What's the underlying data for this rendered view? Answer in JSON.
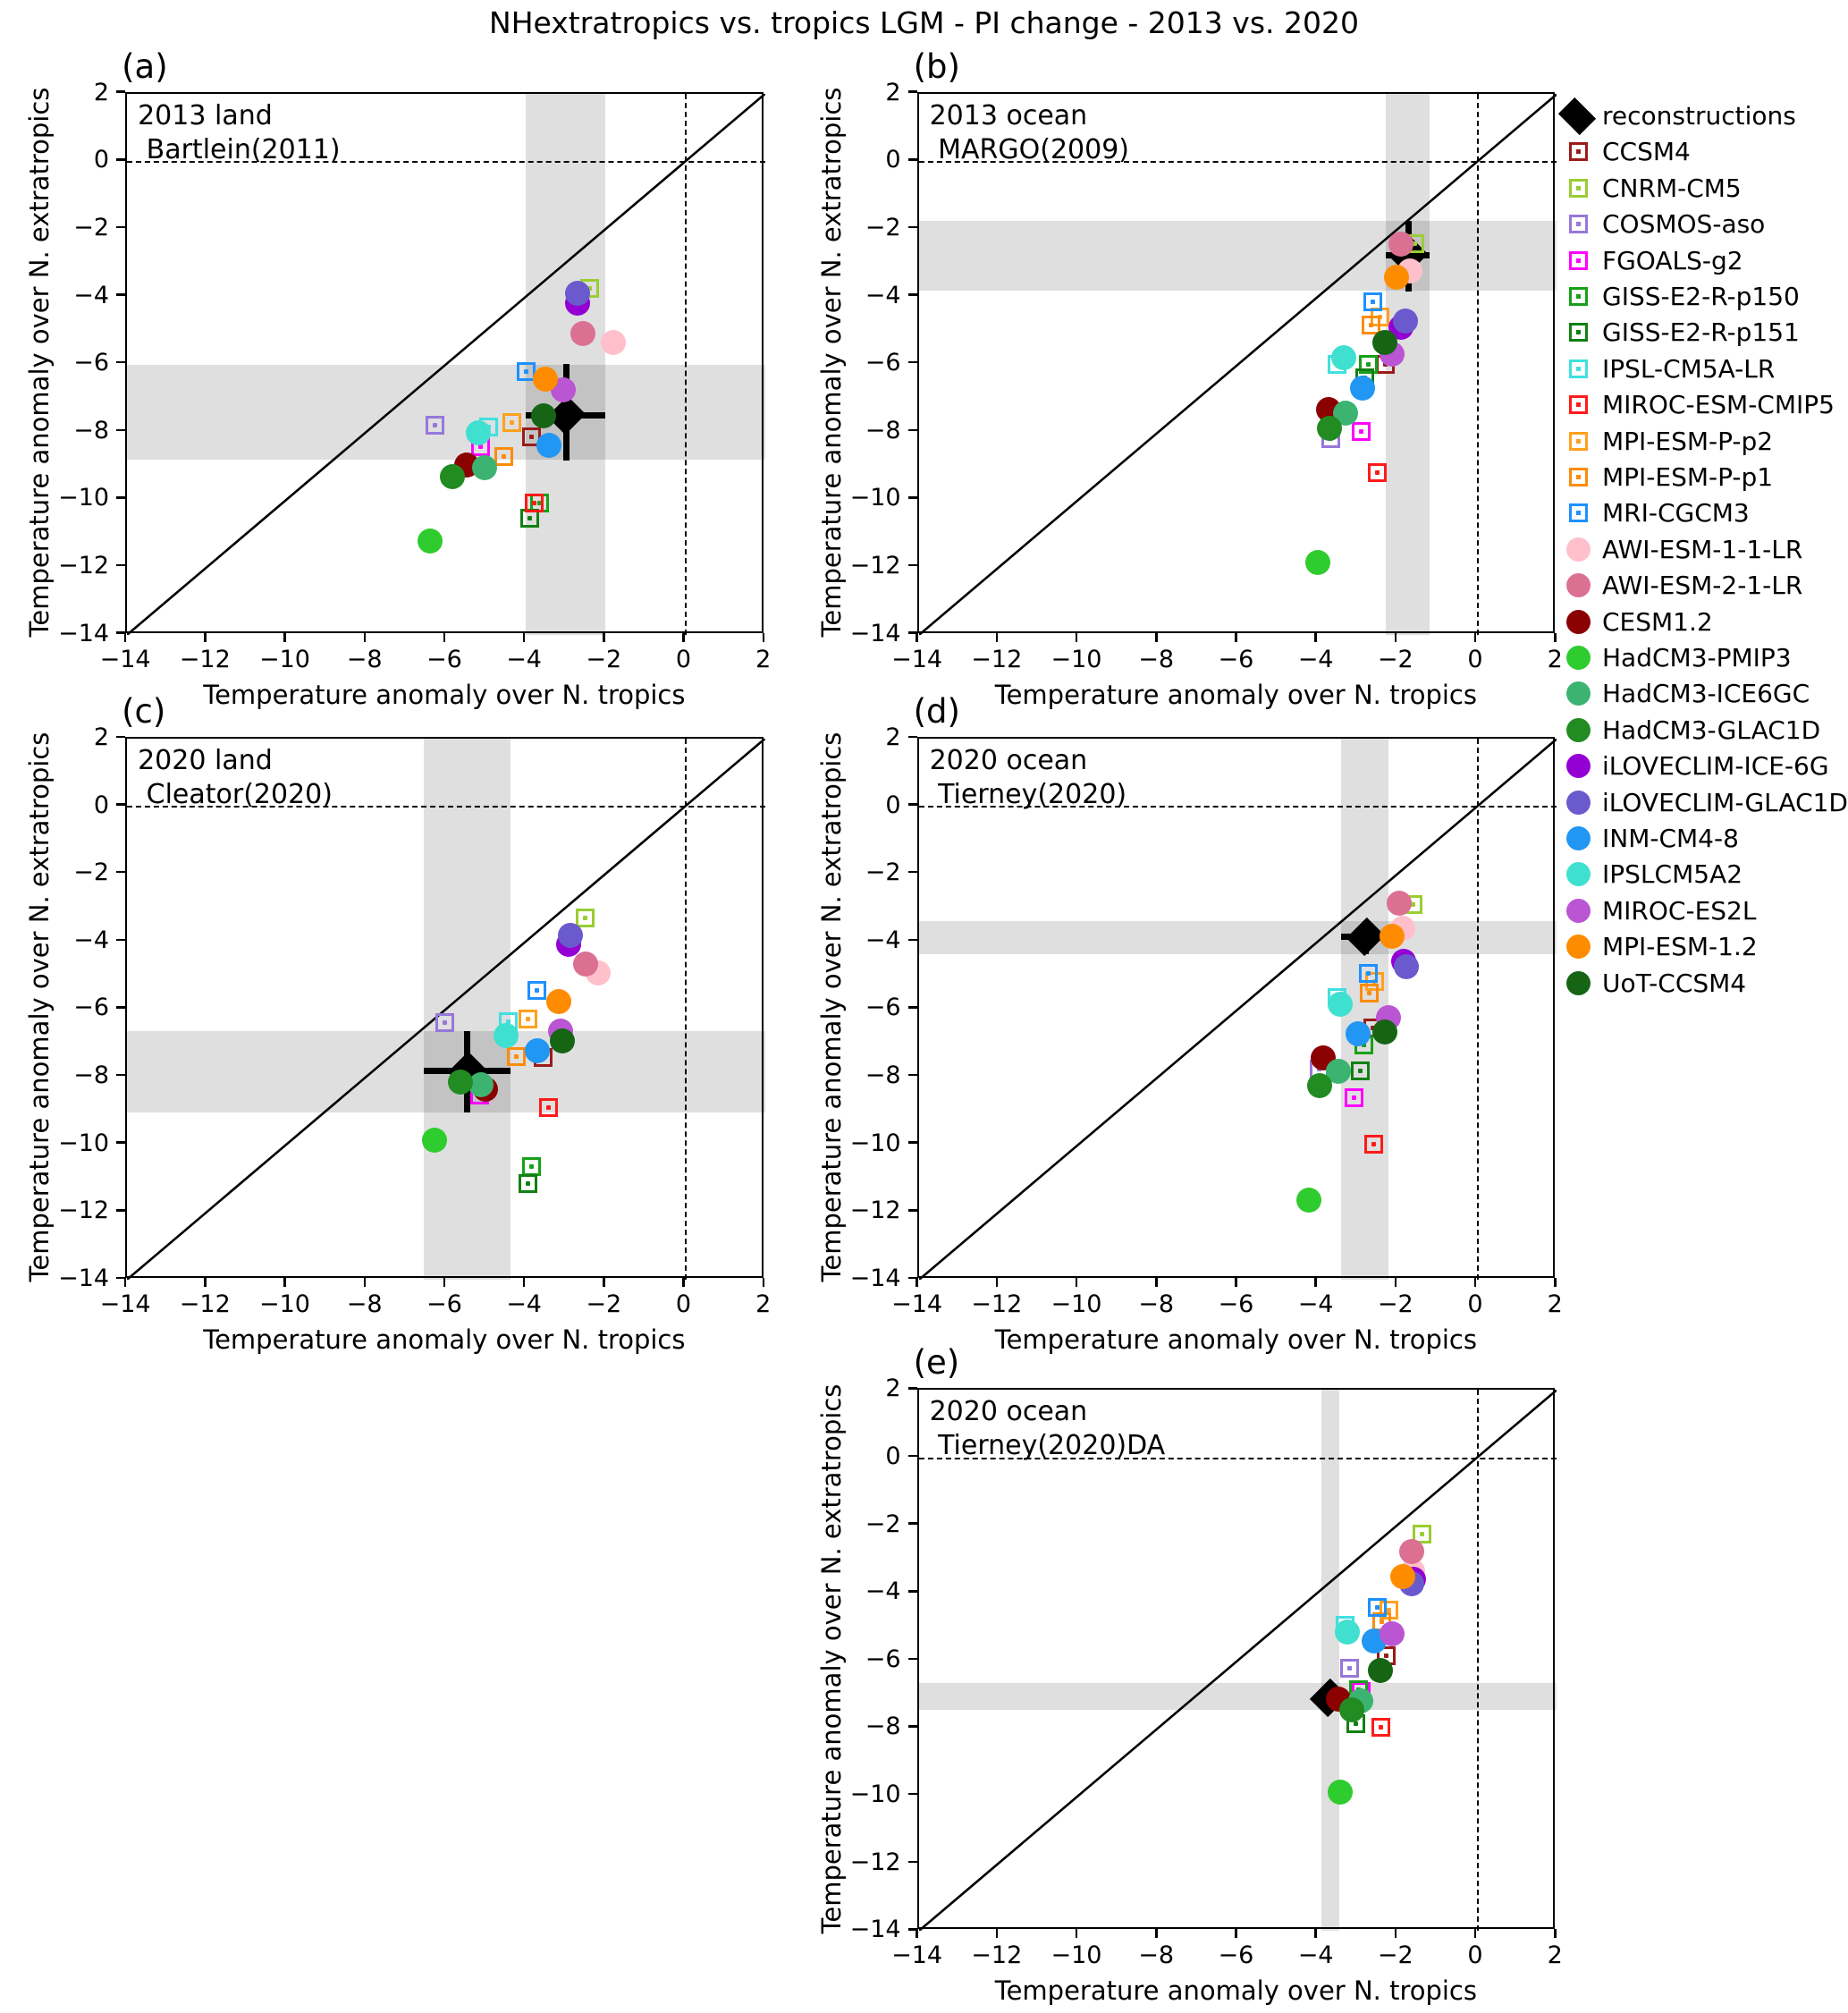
{
  "chart_data": {
    "type": "scatter",
    "title": "NHextratropics vs. tropics LGM - PI change - 2013 vs. 2020",
    "xlabel": "Temperature anomaly over N. tropics",
    "ylabel": "Temperature anomaly over N. extratropics",
    "xlim": [
      -14,
      2
    ],
    "ylim": [
      -14,
      2
    ],
    "xticks": [
      -14,
      -12,
      -10,
      -8,
      -6,
      -4,
      -2,
      0,
      2
    ],
    "yticks": [
      -14,
      -12,
      -10,
      -8,
      -6,
      -4,
      -2,
      0,
      2
    ],
    "grid": false,
    "legend_position": "right",
    "legend": [
      {
        "label": "reconstructions",
        "color": "#000000",
        "marker": "diamond"
      },
      {
        "label": "CCSM4",
        "color": "#9B1B1B",
        "marker": "square"
      },
      {
        "label": "CNRM-CM5",
        "color": "#9ACD32",
        "marker": "square"
      },
      {
        "label": "COSMOS-aso",
        "color": "#9678D9",
        "marker": "square"
      },
      {
        "label": "FGOALS-g2",
        "color": "#FF00FF",
        "marker": "square"
      },
      {
        "label": "GISS-E2-R-p150",
        "color": "#18A018",
        "marker": "square"
      },
      {
        "label": "GISS-E2-R-p151",
        "color": "#128012",
        "marker": "square"
      },
      {
        "label": "IPSL-CM5A-LR",
        "color": "#40E0E0",
        "marker": "square"
      },
      {
        "label": "MIROC-ESM-CMIP5",
        "color": "#FF1A1A",
        "marker": "square"
      },
      {
        "label": "MPI-ESM-P-p2",
        "color": "#FFA01E",
        "marker": "square"
      },
      {
        "label": "MPI-ESM-P-p1",
        "color": "#FB8C0C",
        "marker": "square"
      },
      {
        "label": "MRI-CGCM3",
        "color": "#1E90FF",
        "marker": "square"
      },
      {
        "label": "AWI-ESM-1-1-LR",
        "color": "#FFC0CB",
        "marker": "circle"
      },
      {
        "label": "AWI-ESM-2-1-LR",
        "color": "#DB7093",
        "marker": "circle"
      },
      {
        "label": "CESM1.2",
        "color": "#8B0000",
        "marker": "circle"
      },
      {
        "label": "HadCM3-PMIP3",
        "color": "#2ECC2E",
        "marker": "circle"
      },
      {
        "label": "HadCM3-ICE6GC",
        "color": "#3CB371",
        "marker": "circle"
      },
      {
        "label": "HadCM3-GLAC1D",
        "color": "#228B22",
        "marker": "circle"
      },
      {
        "label": "iLOVECLIM-ICE-6G",
        "color": "#9400D3",
        "marker": "circle"
      },
      {
        "label": "iLOVECLIM-GLAC1D",
        "color": "#6A5ACD",
        "marker": "circle"
      },
      {
        "label": "INM-CM4-8",
        "color": "#2196F3",
        "marker": "circle"
      },
      {
        "label": "IPSLCM5A2",
        "color": "#40E0D0",
        "marker": "circle"
      },
      {
        "label": "MIROC-ES2L",
        "color": "#BA55D3",
        "marker": "circle"
      },
      {
        "label": "MPI-ESM-1.2",
        "color": "#FF8C00",
        "marker": "circle"
      },
      {
        "label": "UoT-CCSM4",
        "color": "#156515",
        "marker": "circle"
      }
    ],
    "panels": [
      {
        "id": "a",
        "letter": "(a)",
        "caption_line1": "2013 land",
        "caption_line2": "Bartlein(2011)",
        "col": 1,
        "row": 1,
        "xband": [
          -4.0,
          -2.0
        ],
        "yband": [
          -8.83,
          -6.03
        ],
        "recon": {
          "x": -2.98,
          "y": -7.52,
          "xerr": [
            -4.0,
            -2.0
          ],
          "yerr": [
            -8.85,
            -6.0
          ]
        },
        "points": [
          {
            "model": "CCSM4",
            "x": -3.85,
            "y": -8.14
          },
          {
            "model": "CNRM-CM5",
            "x": -2.4,
            "y": -3.77
          },
          {
            "model": "COSMOS-aso",
            "x": -6.27,
            "y": -7.81
          },
          {
            "model": "FGOALS-g2",
            "x": -5.14,
            "y": -8.43
          },
          {
            "model": "GISS-E2-R-p150",
            "x": -3.65,
            "y": -10.1
          },
          {
            "model": "GISS-E2-R-p151",
            "x": -3.91,
            "y": -10.57
          },
          {
            "model": "IPSL-CM5A-LR",
            "x": -4.94,
            "y": -7.87
          },
          {
            "model": "MIROC-ESM-CMIP5",
            "x": -3.78,
            "y": -10.1
          },
          {
            "model": "MPI-ESM-P-p2",
            "x": -4.36,
            "y": -7.72
          },
          {
            "model": "MPI-ESM-P-p1",
            "x": -4.56,
            "y": -8.74
          },
          {
            "model": "MRI-CGCM3",
            "x": -3.98,
            "y": -6.21
          },
          {
            "model": "AWI-ESM-1-1-LR",
            "x": -1.8,
            "y": -5.35
          },
          {
            "model": "AWI-ESM-2-1-LR",
            "x": -2.57,
            "y": -5.1
          },
          {
            "model": "CESM1.2",
            "x": -5.49,
            "y": -8.98
          },
          {
            "model": "HadCM3-PMIP3",
            "x": -6.4,
            "y": -11.24
          },
          {
            "model": "HadCM3-ICE6GC",
            "x": -5.04,
            "y": -9.06
          },
          {
            "model": "HadCM3-GLAC1D",
            "x": -5.83,
            "y": -9.34
          },
          {
            "model": "iLOVECLIM-ICE-6G",
            "x": -2.7,
            "y": -4.19
          },
          {
            "model": "iLOVECLIM-GLAC1D",
            "x": -2.7,
            "y": -3.91
          },
          {
            "model": "INM-CM4-8",
            "x": -3.43,
            "y": -8.41
          },
          {
            "model": "IPSLCM5A2",
            "x": -5.19,
            "y": -8.03
          },
          {
            "model": "MIROC-ES2L",
            "x": -3.05,
            "y": -6.77
          },
          {
            "model": "MPI-ESM-1.2",
            "x": -3.51,
            "y": -6.45
          },
          {
            "model": "UoT-CCSM4",
            "x": -3.55,
            "y": -7.54
          }
        ]
      },
      {
        "id": "b",
        "letter": "(b)",
        "caption_line1": "2013 ocean",
        "caption_line2": "MARGO(2009)",
        "col": 2,
        "row": 1,
        "xband": [
          -2.28,
          -1.18
        ],
        "yband": [
          -3.84,
          -1.76
        ],
        "recon": {
          "x": -1.72,
          "y": -2.78,
          "xerr": [
            -2.28,
            -1.18
          ],
          "yerr": [
            -3.85,
            -1.76
          ]
        },
        "points": [
          {
            "model": "CCSM4",
            "x": -2.3,
            "y": -6.0
          },
          {
            "model": "CNRM-CM5",
            "x": -1.55,
            "y": -2.45
          },
          {
            "model": "COSMOS-aso",
            "x": -3.66,
            "y": -8.2
          },
          {
            "model": "FGOALS-g2",
            "x": -2.9,
            "y": -8.0
          },
          {
            "model": "GISS-E2-R-p150",
            "x": -2.72,
            "y": -6.0
          },
          {
            "model": "GISS-E2-R-p151",
            "x": -2.82,
            "y": -6.4
          },
          {
            "model": "IPSL-CM5A-LR",
            "x": -3.5,
            "y": -6.0
          },
          {
            "model": "MIROC-ESM-CMIP5",
            "x": -2.5,
            "y": -9.2
          },
          {
            "model": "MPI-ESM-P-p2",
            "x": -2.43,
            "y": -4.61
          },
          {
            "model": "MPI-ESM-P-p1",
            "x": -2.65,
            "y": -4.85
          },
          {
            "model": "MRI-CGCM3",
            "x": -2.62,
            "y": -4.15
          },
          {
            "model": "AWI-ESM-1-1-LR",
            "x": -1.69,
            "y": -3.24
          },
          {
            "model": "AWI-ESM-2-1-LR",
            "x": -1.9,
            "y": -2.44
          },
          {
            "model": "CESM1.2",
            "x": -3.72,
            "y": -7.35
          },
          {
            "model": "HadCM3-PMIP3",
            "x": -4.0,
            "y": -11.88
          },
          {
            "model": "HadCM3-ICE6GC",
            "x": -3.3,
            "y": -7.45
          },
          {
            "model": "HadCM3-GLAC1D",
            "x": -3.7,
            "y": -7.9
          },
          {
            "model": "iLOVECLIM-ICE-6G",
            "x": -1.9,
            "y": -4.9
          },
          {
            "model": "iLOVECLIM-GLAC1D",
            "x": -1.79,
            "y": -4.72
          },
          {
            "model": "INM-CM4-8",
            "x": -2.88,
            "y": -6.7
          },
          {
            "model": "IPSLCM5A2",
            "x": -3.35,
            "y": -5.82
          },
          {
            "model": "MIROC-ES2L",
            "x": -2.13,
            "y": -5.7
          },
          {
            "model": "MPI-ESM-1.2",
            "x": -2.01,
            "y": -3.44
          },
          {
            "model": "UoT-CCSM4",
            "x": -2.31,
            "y": -5.35
          }
        ]
      },
      {
        "id": "c",
        "letter": "(c)",
        "caption_line1": "2020 land",
        "caption_line2": "Cleator(2020)",
        "col": 1,
        "row": 2,
        "xband": [
          -6.55,
          -4.38
        ],
        "yband": [
          -9.06,
          -6.65
        ],
        "recon": {
          "x": -5.46,
          "y": -7.82,
          "xerr": [
            -6.55,
            -4.38
          ],
          "yerr": [
            -9.06,
            -6.65
          ]
        },
        "points": [
          {
            "model": "CCSM4",
            "x": -3.56,
            "y": -7.42
          },
          {
            "model": "CNRM-CM5",
            "x": -2.51,
            "y": -3.3
          },
          {
            "model": "COSMOS-aso",
            "x": -6.04,
            "y": -6.41
          },
          {
            "model": "FGOALS-g2",
            "x": -5.15,
            "y": -8.55
          },
          {
            "model": "GISS-E2-R-p150",
            "x": -3.85,
            "y": -10.65
          },
          {
            "model": "GISS-E2-R-p151",
            "x": -3.95,
            "y": -11.15
          },
          {
            "model": "IPSL-CM5A-LR",
            "x": -4.45,
            "y": -6.38
          },
          {
            "model": "MIROC-ESM-CMIP5",
            "x": -3.43,
            "y": -8.92
          },
          {
            "model": "MPI-ESM-P-p2",
            "x": -3.95,
            "y": -6.3
          },
          {
            "model": "MPI-ESM-P-p1",
            "x": -4.23,
            "y": -7.4
          },
          {
            "model": "MRI-CGCM3",
            "x": -3.73,
            "y": -5.46
          },
          {
            "model": "AWI-ESM-1-1-LR",
            "x": -2.18,
            "y": -4.93
          },
          {
            "model": "AWI-ESM-2-1-LR",
            "x": -2.51,
            "y": -4.66
          },
          {
            "model": "CESM1.2",
            "x": -5.01,
            "y": -8.37
          },
          {
            "model": "HadCM3-PMIP3",
            "x": -6.3,
            "y": -9.87
          },
          {
            "model": "HadCM3-ICE6GC",
            "x": -5.12,
            "y": -8.24
          },
          {
            "model": "HadCM3-GLAC1D",
            "x": -5.65,
            "y": -8.17
          },
          {
            "model": "iLOVECLIM-ICE-6G",
            "x": -2.92,
            "y": -4.09
          },
          {
            "model": "iLOVECLIM-GLAC1D",
            "x": -2.88,
            "y": -3.83
          },
          {
            "model": "INM-CM4-8",
            "x": -3.7,
            "y": -7.24
          },
          {
            "model": "IPSLCM5A2",
            "x": -4.49,
            "y": -6.78
          },
          {
            "model": "MIROC-ES2L",
            "x": -3.13,
            "y": -6.65
          },
          {
            "model": "MPI-ESM-1.2",
            "x": -3.17,
            "y": -5.78
          },
          {
            "model": "UoT-CCSM4",
            "x": -3.09,
            "y": -6.94
          }
        ]
      },
      {
        "id": "d",
        "letter": "(d)",
        "caption_line1": "2020 ocean",
        "caption_line2": "Tierney(2020)",
        "col": 2,
        "row": 2,
        "xband": [
          -3.4,
          -2.23
        ],
        "yband": [
          -4.38,
          -3.39
        ],
        "recon": {
          "x": -2.8,
          "y": -3.87,
          "xerr": [
            -3.4,
            -2.23
          ],
          "yerr": [
            -4.38,
            -3.39
          ]
        },
        "points": [
          {
            "model": "CCSM4",
            "x": -2.62,
            "y": -6.56
          },
          {
            "model": "CNRM-CM5",
            "x": -1.61,
            "y": -2.92
          },
          {
            "model": "COSMOS-aso",
            "x": -3.95,
            "y": -7.77
          },
          {
            "model": "FGOALS-g2",
            "x": -3.08,
            "y": -8.62
          },
          {
            "model": "GISS-E2-R-p150",
            "x": -2.84,
            "y": -7.06
          },
          {
            "model": "GISS-E2-R-p151",
            "x": -2.93,
            "y": -7.82
          },
          {
            "model": "IPSL-CM5A-LR",
            "x": -3.5,
            "y": -5.65
          },
          {
            "model": "MIROC-ESM-CMIP5",
            "x": -2.6,
            "y": -10.0
          },
          {
            "model": "MPI-ESM-P-p2",
            "x": -2.56,
            "y": -5.19
          },
          {
            "model": "MPI-ESM-P-p1",
            "x": -2.71,
            "y": -5.53
          },
          {
            "model": "MRI-CGCM3",
            "x": -2.73,
            "y": -4.95
          },
          {
            "model": "AWI-ESM-1-1-LR",
            "x": -1.87,
            "y": -3.61
          },
          {
            "model": "AWI-ESM-2-1-LR",
            "x": -1.94,
            "y": -2.86
          },
          {
            "model": "CESM1.2",
            "x": -3.85,
            "y": -7.44
          },
          {
            "model": "HadCM3-PMIP3",
            "x": -4.22,
            "y": -11.65
          },
          {
            "model": "HadCM3-ICE6GC",
            "x": -3.48,
            "y": -7.84
          },
          {
            "model": "HadCM3-GLAC1D",
            "x": -3.95,
            "y": -8.26
          },
          {
            "model": "iLOVECLIM-ICE-6G",
            "x": -1.83,
            "y": -4.58
          },
          {
            "model": "iLOVECLIM-GLAC1D",
            "x": -1.78,
            "y": -4.74
          },
          {
            "model": "INM-CM4-8",
            "x": -2.98,
            "y": -6.74
          },
          {
            "model": "IPSLCM5A2",
            "x": -3.42,
            "y": -5.86
          },
          {
            "model": "MIROC-ES2L",
            "x": -2.23,
            "y": -6.25
          },
          {
            "model": "MPI-ESM-1.2",
            "x": -2.13,
            "y": -3.85
          },
          {
            "model": "UoT-CCSM4",
            "x": -2.32,
            "y": -6.67
          }
        ]
      },
      {
        "id": "e",
        "letter": "(e)",
        "caption_line1": "2020 ocean",
        "caption_line2": "Tierney(2020)DA",
        "col": 2,
        "row": 3,
        "xband": [
          -3.9,
          -3.45
        ],
        "yband": [
          -7.46,
          -6.66
        ],
        "recon": {
          "x": -3.72,
          "y": -7.1,
          "xerr": [
            -3.9,
            -3.45
          ],
          "yerr": [
            -7.46,
            -6.66
          ]
        },
        "points": [
          {
            "model": "CCSM4",
            "x": -2.28,
            "y": -5.87
          },
          {
            "model": "CNRM-CM5",
            "x": -1.38,
            "y": -2.25
          },
          {
            "model": "COSMOS-aso",
            "x": -3.2,
            "y": -6.24
          },
          {
            "model": "FGOALS-g2",
            "x": -2.9,
            "y": -6.91
          },
          {
            "model": "GISS-E2-R-p150",
            "x": -2.97,
            "y": -6.86
          },
          {
            "model": "GISS-E2-R-p151",
            "x": -3.03,
            "y": -7.88
          },
          {
            "model": "IPSL-CM5A-LR",
            "x": -3.3,
            "y": -4.95
          },
          {
            "model": "MIROC-ESM-CMIP5",
            "x": -2.41,
            "y": -7.97
          },
          {
            "model": "MPI-ESM-P-p2",
            "x": -2.2,
            "y": -4.5
          },
          {
            "model": "MPI-ESM-P-p1",
            "x": -2.38,
            "y": -4.86
          },
          {
            "model": "MRI-CGCM3",
            "x": -2.5,
            "y": -4.44
          },
          {
            "model": "AWI-ESM-1-1-LR",
            "x": -1.61,
            "y": -3.36
          },
          {
            "model": "AWI-ESM-2-1-LR",
            "x": -1.64,
            "y": -2.78
          },
          {
            "model": "CESM1.2",
            "x": -3.48,
            "y": -7.15
          },
          {
            "model": "HadCM3-PMIP3",
            "x": -3.44,
            "y": -9.88
          },
          {
            "model": "HadCM3-ICE6GC",
            "x": -2.91,
            "y": -7.19
          },
          {
            "model": "HadCM3-GLAC1D",
            "x": -3.14,
            "y": -7.46
          },
          {
            "model": "iLOVECLIM-ICE-6G",
            "x": -1.6,
            "y": -3.6
          },
          {
            "model": "iLOVECLIM-GLAC1D",
            "x": -1.64,
            "y": -3.73
          },
          {
            "model": "INM-CM4-8",
            "x": -2.58,
            "y": -5.43
          },
          {
            "model": "IPSLCM5A2",
            "x": -3.25,
            "y": -5.15
          },
          {
            "model": "MIROC-ES2L",
            "x": -2.13,
            "y": -5.21
          },
          {
            "model": "MPI-ESM-1.2",
            "x": -1.85,
            "y": -3.51
          },
          {
            "model": "UoT-CCSM4",
            "x": -2.43,
            "y": -6.29
          }
        ]
      }
    ]
  }
}
